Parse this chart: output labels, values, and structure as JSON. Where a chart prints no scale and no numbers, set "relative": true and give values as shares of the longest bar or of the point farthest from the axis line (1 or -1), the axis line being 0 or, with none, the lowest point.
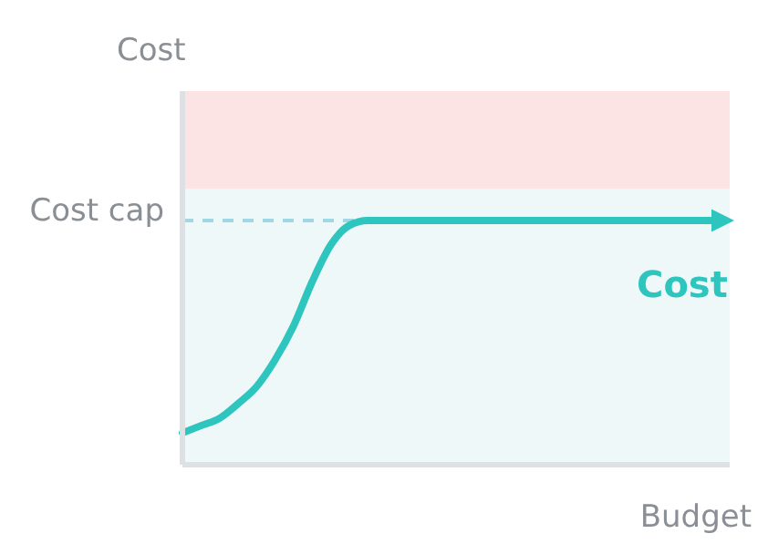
{
  "chart_data": {
    "type": "line",
    "relative": true,
    "ylabel": "Cost",
    "xlabel": "Budget",
    "categories": [
      null,
      null,
      null,
      null,
      null,
      null,
      null,
      null,
      null,
      null,
      null,
      null,
      null,
      null,
      null,
      null,
      null,
      null,
      null,
      null,
      null,
      null,
      null,
      null,
      null,
      null,
      null,
      null,
      null,
      null
    ],
    "series": [
      {
        "name": "Cost",
        "color": "#2ec5bf",
        "values": [
          0.13,
          0.16,
          0.19,
          0.25,
          0.32,
          0.43,
          0.57,
          0.75,
          0.9,
          0.98,
          1,
          1,
          1,
          1,
          1,
          1,
          1,
          1,
          1,
          1,
          1,
          1,
          1,
          1,
          1,
          1,
          1,
          1,
          1,
          1
        ]
      }
    ],
    "ref_lines": [
      {
        "axis": "y",
        "value": 1,
        "label": "Cost cap",
        "color": "#9fd8e4",
        "line_style": "dashed"
      }
    ],
    "bands": [
      {
        "axis": "y",
        "from": 0,
        "to": 1.13,
        "color": "#eef8f8"
      },
      {
        "axis": "y",
        "from": 1.13,
        "to": 1.53,
        "color": "#fde4e4"
      }
    ]
  }
}
